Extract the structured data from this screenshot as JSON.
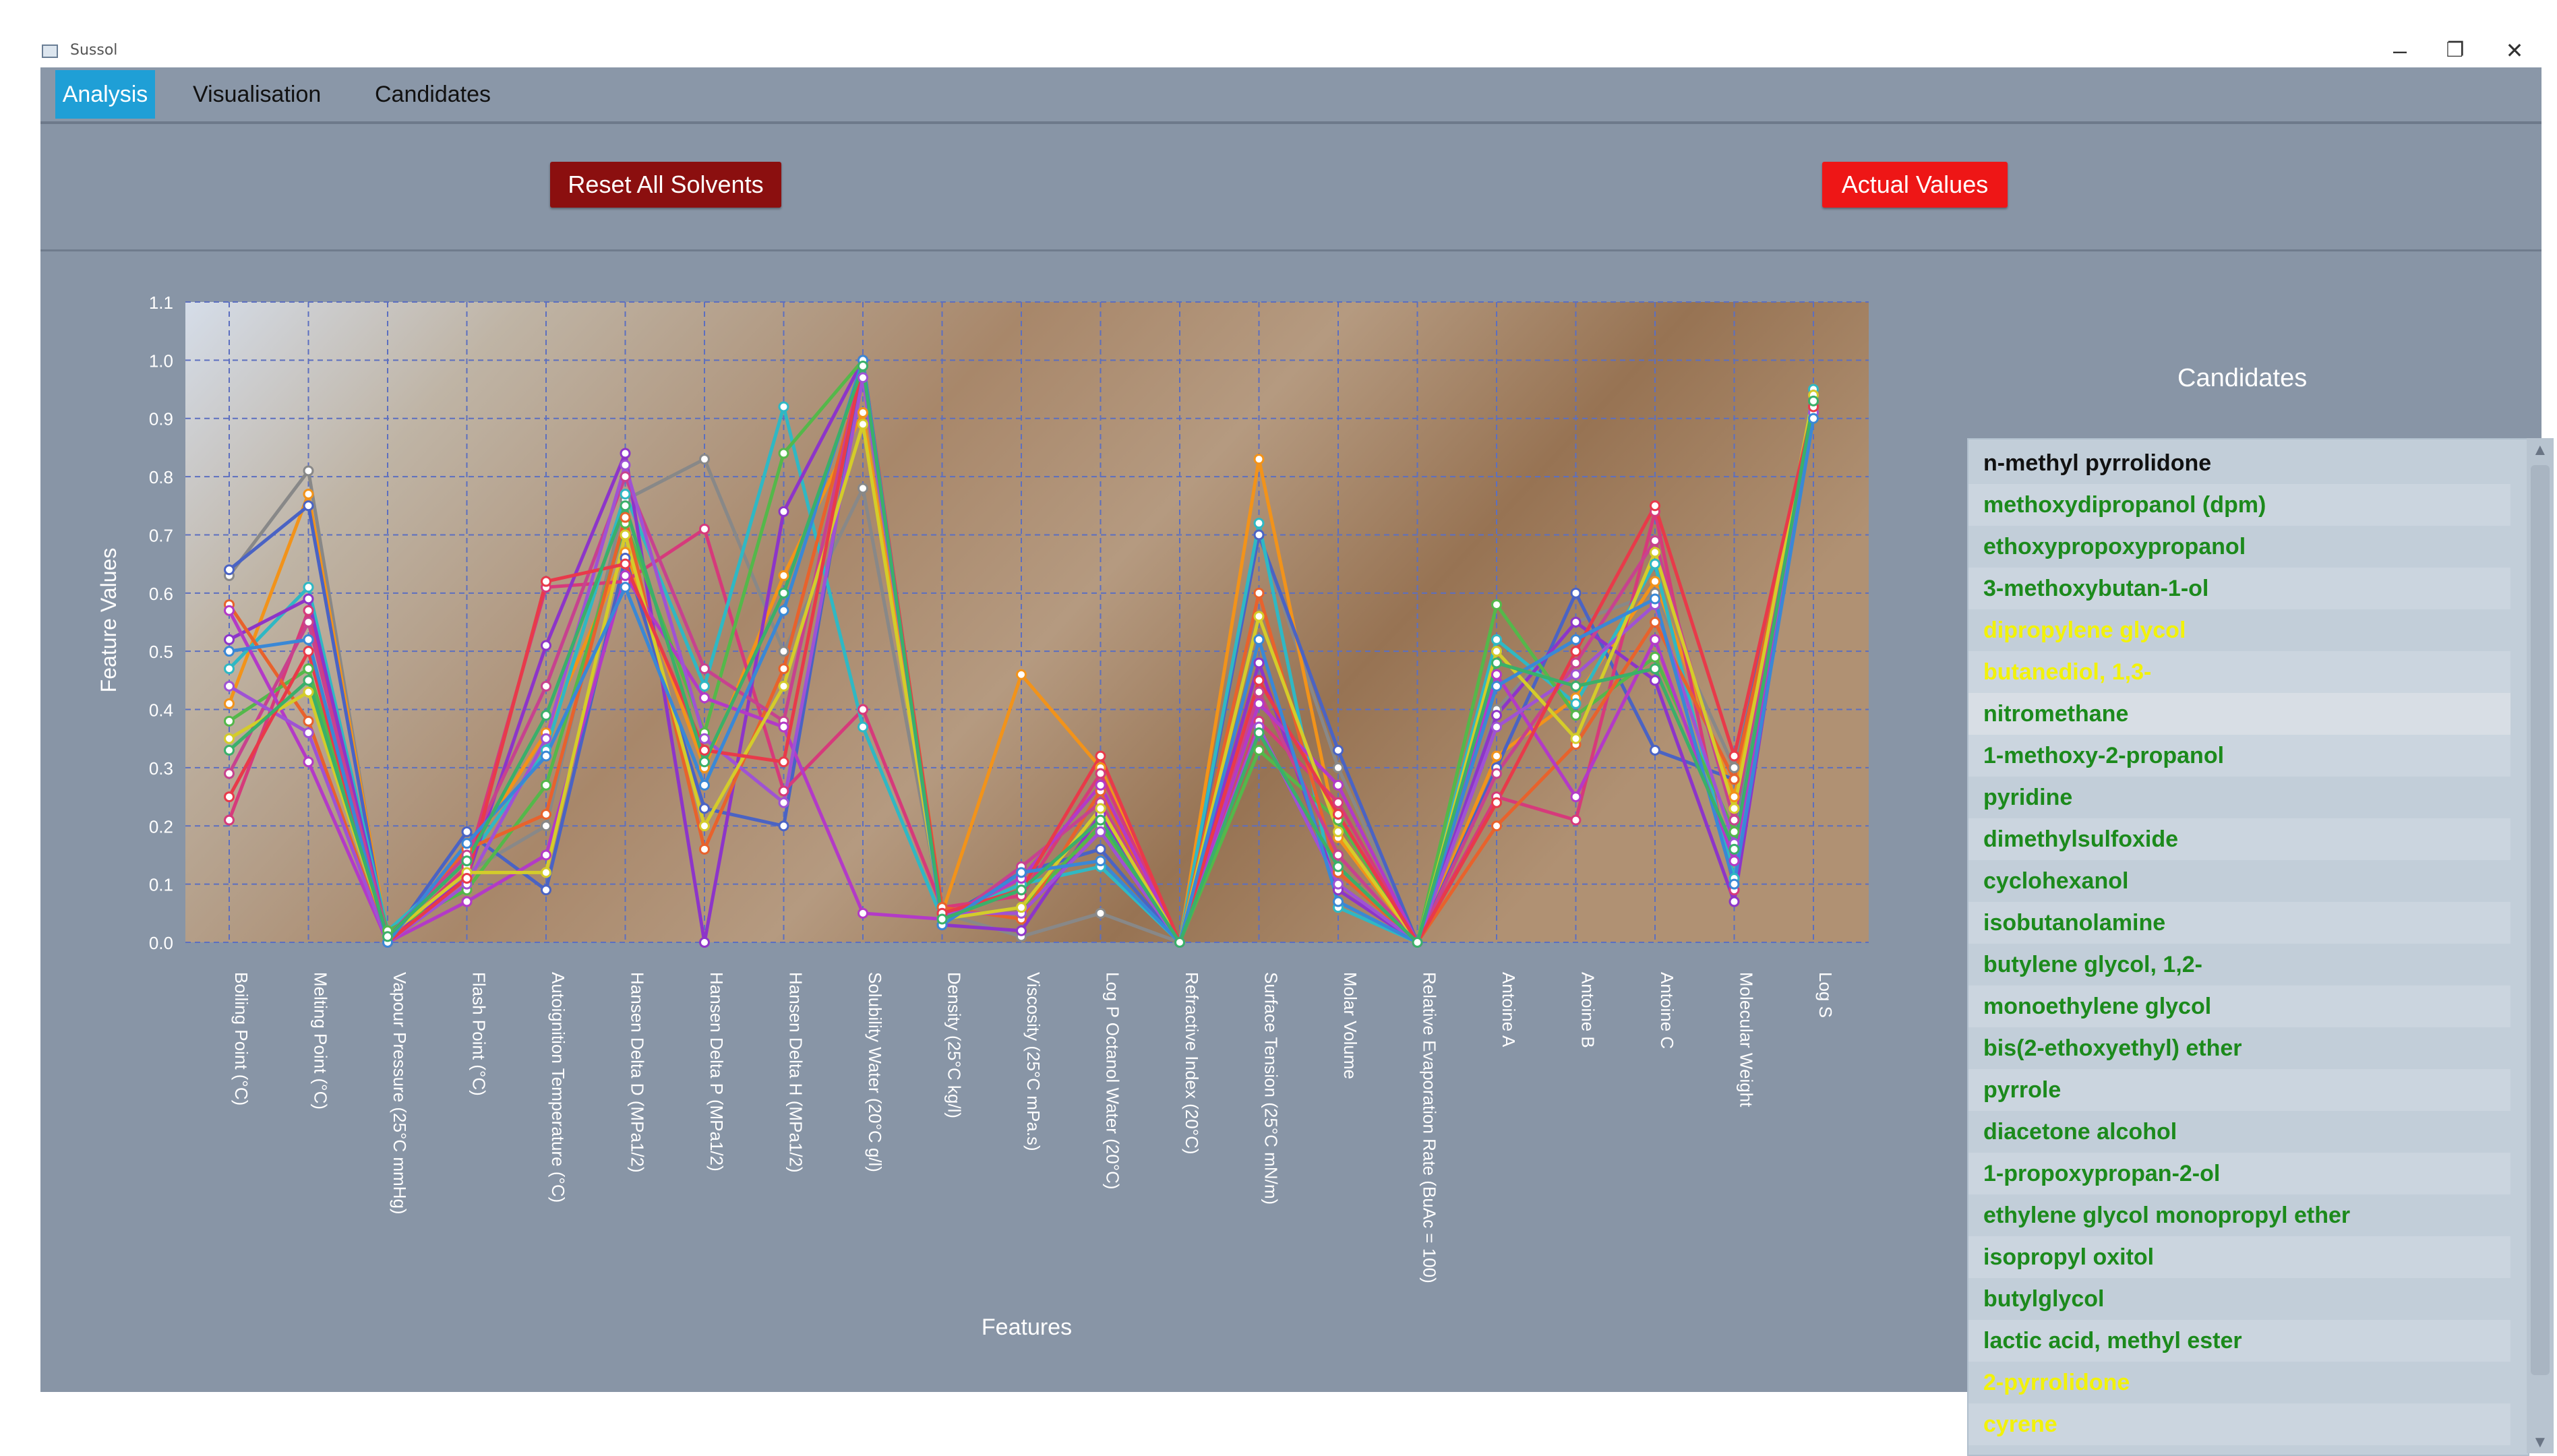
{
  "window": {
    "title": "Sussol",
    "minimize": "–",
    "restore": "❐",
    "close": "✕"
  },
  "tabs": [
    {
      "label": "Analysis",
      "active": true
    },
    {
      "label": "Visualisation",
      "active": false
    },
    {
      "label": "Candidates",
      "active": false
    }
  ],
  "toolbar": {
    "reset_label": "Reset All Solvents",
    "actual_label": "Actual Values"
  },
  "candidates": {
    "title": "Candidates",
    "items": [
      {
        "name": "n-methyl pyrrolidone",
        "color": "#111111"
      },
      {
        "name": "methoxydipropanol (dpm)",
        "color": "#1c8a1c"
      },
      {
        "name": "ethoxypropoxypropanol",
        "color": "#1c8a1c"
      },
      {
        "name": "3-methoxybutan-1-ol",
        "color": "#1c8a1c"
      },
      {
        "name": "dipropylene glycol",
        "color": "#f2f20a"
      },
      {
        "name": "butanediol, 1,3-",
        "color": "#f2f20a"
      },
      {
        "name": "nitromethane",
        "color": "#1c8a1c",
        "selected": true
      },
      {
        "name": "1-methoxy-2-propanol",
        "color": "#1c8a1c"
      },
      {
        "name": "pyridine",
        "color": "#1c8a1c"
      },
      {
        "name": "dimethylsulfoxide",
        "color": "#1c8a1c"
      },
      {
        "name": "cyclohexanol",
        "color": "#1c8a1c"
      },
      {
        "name": "isobutanolamine",
        "color": "#1c8a1c"
      },
      {
        "name": "butylene glycol, 1,2-",
        "color": "#1c8a1c"
      },
      {
        "name": "monoethylene glycol",
        "color": "#1c8a1c"
      },
      {
        "name": "bis(2-ethoxyethyl) ether",
        "color": "#1c8a1c"
      },
      {
        "name": "pyrrole",
        "color": "#1c8a1c"
      },
      {
        "name": "diacetone alcohol",
        "color": "#1c8a1c"
      },
      {
        "name": "1-propoxypropan-2-ol",
        "color": "#1c8a1c"
      },
      {
        "name": "ethylene glycol monopropyl ether",
        "color": "#1c8a1c"
      },
      {
        "name": "isopropyl oxitol",
        "color": "#1c8a1c"
      },
      {
        "name": "butylglycol",
        "color": "#1c8a1c"
      },
      {
        "name": "lactic acid, methyl ester",
        "color": "#1c8a1c"
      },
      {
        "name": "2-pyrrolidone",
        "color": "#f2f20a"
      },
      {
        "name": "cyrene",
        "color": "#f2f20a"
      }
    ]
  },
  "chart_data": {
    "type": "line",
    "xlabel": "Features",
    "ylabel": "Feature Values",
    "ylim": [
      0,
      1.1
    ],
    "yticks": [
      "0.0",
      "0.1",
      "0.2",
      "0.3",
      "0.4",
      "0.5",
      "0.6",
      "0.7",
      "0.8",
      "0.9",
      "1.0",
      "1.1"
    ],
    "grid": true,
    "categories": [
      "Boiling Point (°C)",
      "Melting Point (°C)",
      "Vapour Pressure (25°C mmHg)",
      "Flash Point (°C)",
      "Autoignition Temperature (°C)",
      "Hansen Delta D (MPa1/2)",
      "Hansen Delta P (MPa1/2)",
      "Hansen Delta H (MPa1/2)",
      "Solubility Water (20°C g/l)",
      "Density (25°C kg/l)",
      "Viscosity (25°C mPa.s)",
      "Log P Octanol Water (20°C)",
      "Refractive Index (20°C)",
      "Surface Tension (25°C mN/m)",
      "Molar Volume",
      "Relative Evaporation Rate (BuAc = 100)",
      "Antoine A",
      "Antoine B",
      "Antoine C",
      "Molecular Weight",
      "Log S"
    ],
    "series": [
      {
        "color": "#888888",
        "values": [
          0.63,
          0.81,
          0.0,
          0.12,
          0.2,
          0.76,
          0.83,
          0.5,
          0.78,
          0.05,
          0.01,
          0.05,
          0.0,
          0.7,
          0.3,
          0.0,
          0.4,
          0.55,
          0.6,
          0.3,
          0.92
        ]
      },
      {
        "color": "#f2931a",
        "values": [
          0.41,
          0.77,
          0.01,
          0.15,
          0.36,
          0.67,
          0.3,
          0.63,
          0.91,
          0.05,
          0.46,
          0.3,
          0.0,
          0.83,
          0.18,
          0.0,
          0.32,
          0.42,
          0.62,
          0.25,
          0.92
        ]
      },
      {
        "color": "#4a63c4",
        "values": [
          0.64,
          0.75,
          0.0,
          0.19,
          0.09,
          0.66,
          0.23,
          0.2,
          0.99,
          0.04,
          0.12,
          0.16,
          0.0,
          0.7,
          0.33,
          0.0,
          0.3,
          0.6,
          0.33,
          0.28,
          0.93
        ]
      },
      {
        "color": "#d63a7b",
        "values": [
          0.21,
          0.57,
          0.0,
          0.13,
          0.61,
          0.62,
          0.71,
          0.26,
          0.4,
          0.06,
          0.08,
          0.29,
          0.0,
          0.38,
          0.24,
          0.0,
          0.25,
          0.21,
          0.74,
          0.09,
          0.92
        ]
      },
      {
        "color": "#2fb8c4",
        "values": [
          0.47,
          0.61,
          0.02,
          0.14,
          0.33,
          0.77,
          0.44,
          0.92,
          0.37,
          0.04,
          0.1,
          0.13,
          0.0,
          0.72,
          0.06,
          0.0,
          0.52,
          0.41,
          0.65,
          0.11,
          0.95
        ]
      },
      {
        "color": "#8d35c9",
        "values": [
          0.52,
          0.59,
          0.01,
          0.11,
          0.51,
          0.84,
          0.0,
          0.74,
          1.0,
          0.03,
          0.02,
          0.22,
          0.0,
          0.48,
          0.09,
          0.0,
          0.39,
          0.55,
          0.45,
          0.07,
          0.94
        ]
      },
      {
        "color": "#54b84a",
        "values": [
          0.38,
          0.47,
          0.02,
          0.09,
          0.27,
          0.72,
          0.36,
          0.84,
          1.0,
          0.04,
          0.06,
          0.2,
          0.0,
          0.33,
          0.21,
          0.0,
          0.58,
          0.39,
          0.49,
          0.19,
          0.9
        ]
      },
      {
        "color": "#e8622c",
        "values": [
          0.58,
          0.38,
          0.0,
          0.16,
          0.22,
          0.73,
          0.16,
          0.47,
          0.99,
          0.06,
          0.04,
          0.26,
          0.0,
          0.6,
          0.12,
          0.0,
          0.2,
          0.34,
          0.55,
          0.28,
          0.91
        ]
      },
      {
        "color": "#c7428f",
        "values": [
          0.29,
          0.55,
          0.01,
          0.15,
          0.44,
          0.8,
          0.47,
          0.38,
          1.0,
          0.03,
          0.13,
          0.24,
          0.0,
          0.43,
          0.15,
          0.0,
          0.29,
          0.48,
          0.69,
          0.21,
          0.93
        ]
      },
      {
        "color": "#b33ac7",
        "values": [
          0.57,
          0.31,
          0.0,
          0.07,
          0.15,
          0.63,
          0.42,
          0.37,
          0.05,
          0.04,
          0.11,
          0.27,
          0.0,
          0.41,
          0.27,
          0.0,
          0.46,
          0.25,
          0.52,
          0.14,
          0.92
        ]
      },
      {
        "color": "#9f52d4",
        "values": [
          0.44,
          0.36,
          0.0,
          0.1,
          0.35,
          0.82,
          0.35,
          0.24,
          0.97,
          0.05,
          0.05,
          0.19,
          0.0,
          0.37,
          0.1,
          0.0,
          0.37,
          0.46,
          0.58,
          0.17,
          0.91
        ]
      },
      {
        "color": "#d4cc2a",
        "values": [
          0.35,
          0.43,
          0.01,
          0.12,
          0.12,
          0.7,
          0.2,
          0.44,
          0.89,
          0.04,
          0.06,
          0.23,
          0.0,
          0.56,
          0.19,
          0.0,
          0.5,
          0.35,
          0.67,
          0.23,
          0.94
        ]
      },
      {
        "color": "#e83a4a",
        "values": [
          0.25,
          0.5,
          0.0,
          0.11,
          0.62,
          0.65,
          0.33,
          0.31,
          1.0,
          0.05,
          0.09,
          0.32,
          0.0,
          0.45,
          0.22,
          0.0,
          0.24,
          0.5,
          0.75,
          0.32,
          0.92
        ]
      },
      {
        "color": "#3a88d6",
        "values": [
          0.5,
          0.52,
          0.0,
          0.17,
          0.32,
          0.61,
          0.27,
          0.57,
          1.0,
          0.03,
          0.12,
          0.14,
          0.0,
          0.52,
          0.07,
          0.0,
          0.44,
          0.52,
          0.59,
          0.1,
          0.9
        ]
      },
      {
        "color": "#3ab06a",
        "values": [
          0.33,
          0.45,
          0.01,
          0.14,
          0.39,
          0.75,
          0.31,
          0.6,
          0.99,
          0.04,
          0.09,
          0.21,
          0.0,
          0.36,
          0.13,
          0.0,
          0.48,
          0.44,
          0.47,
          0.16,
          0.93
        ]
      }
    ]
  }
}
